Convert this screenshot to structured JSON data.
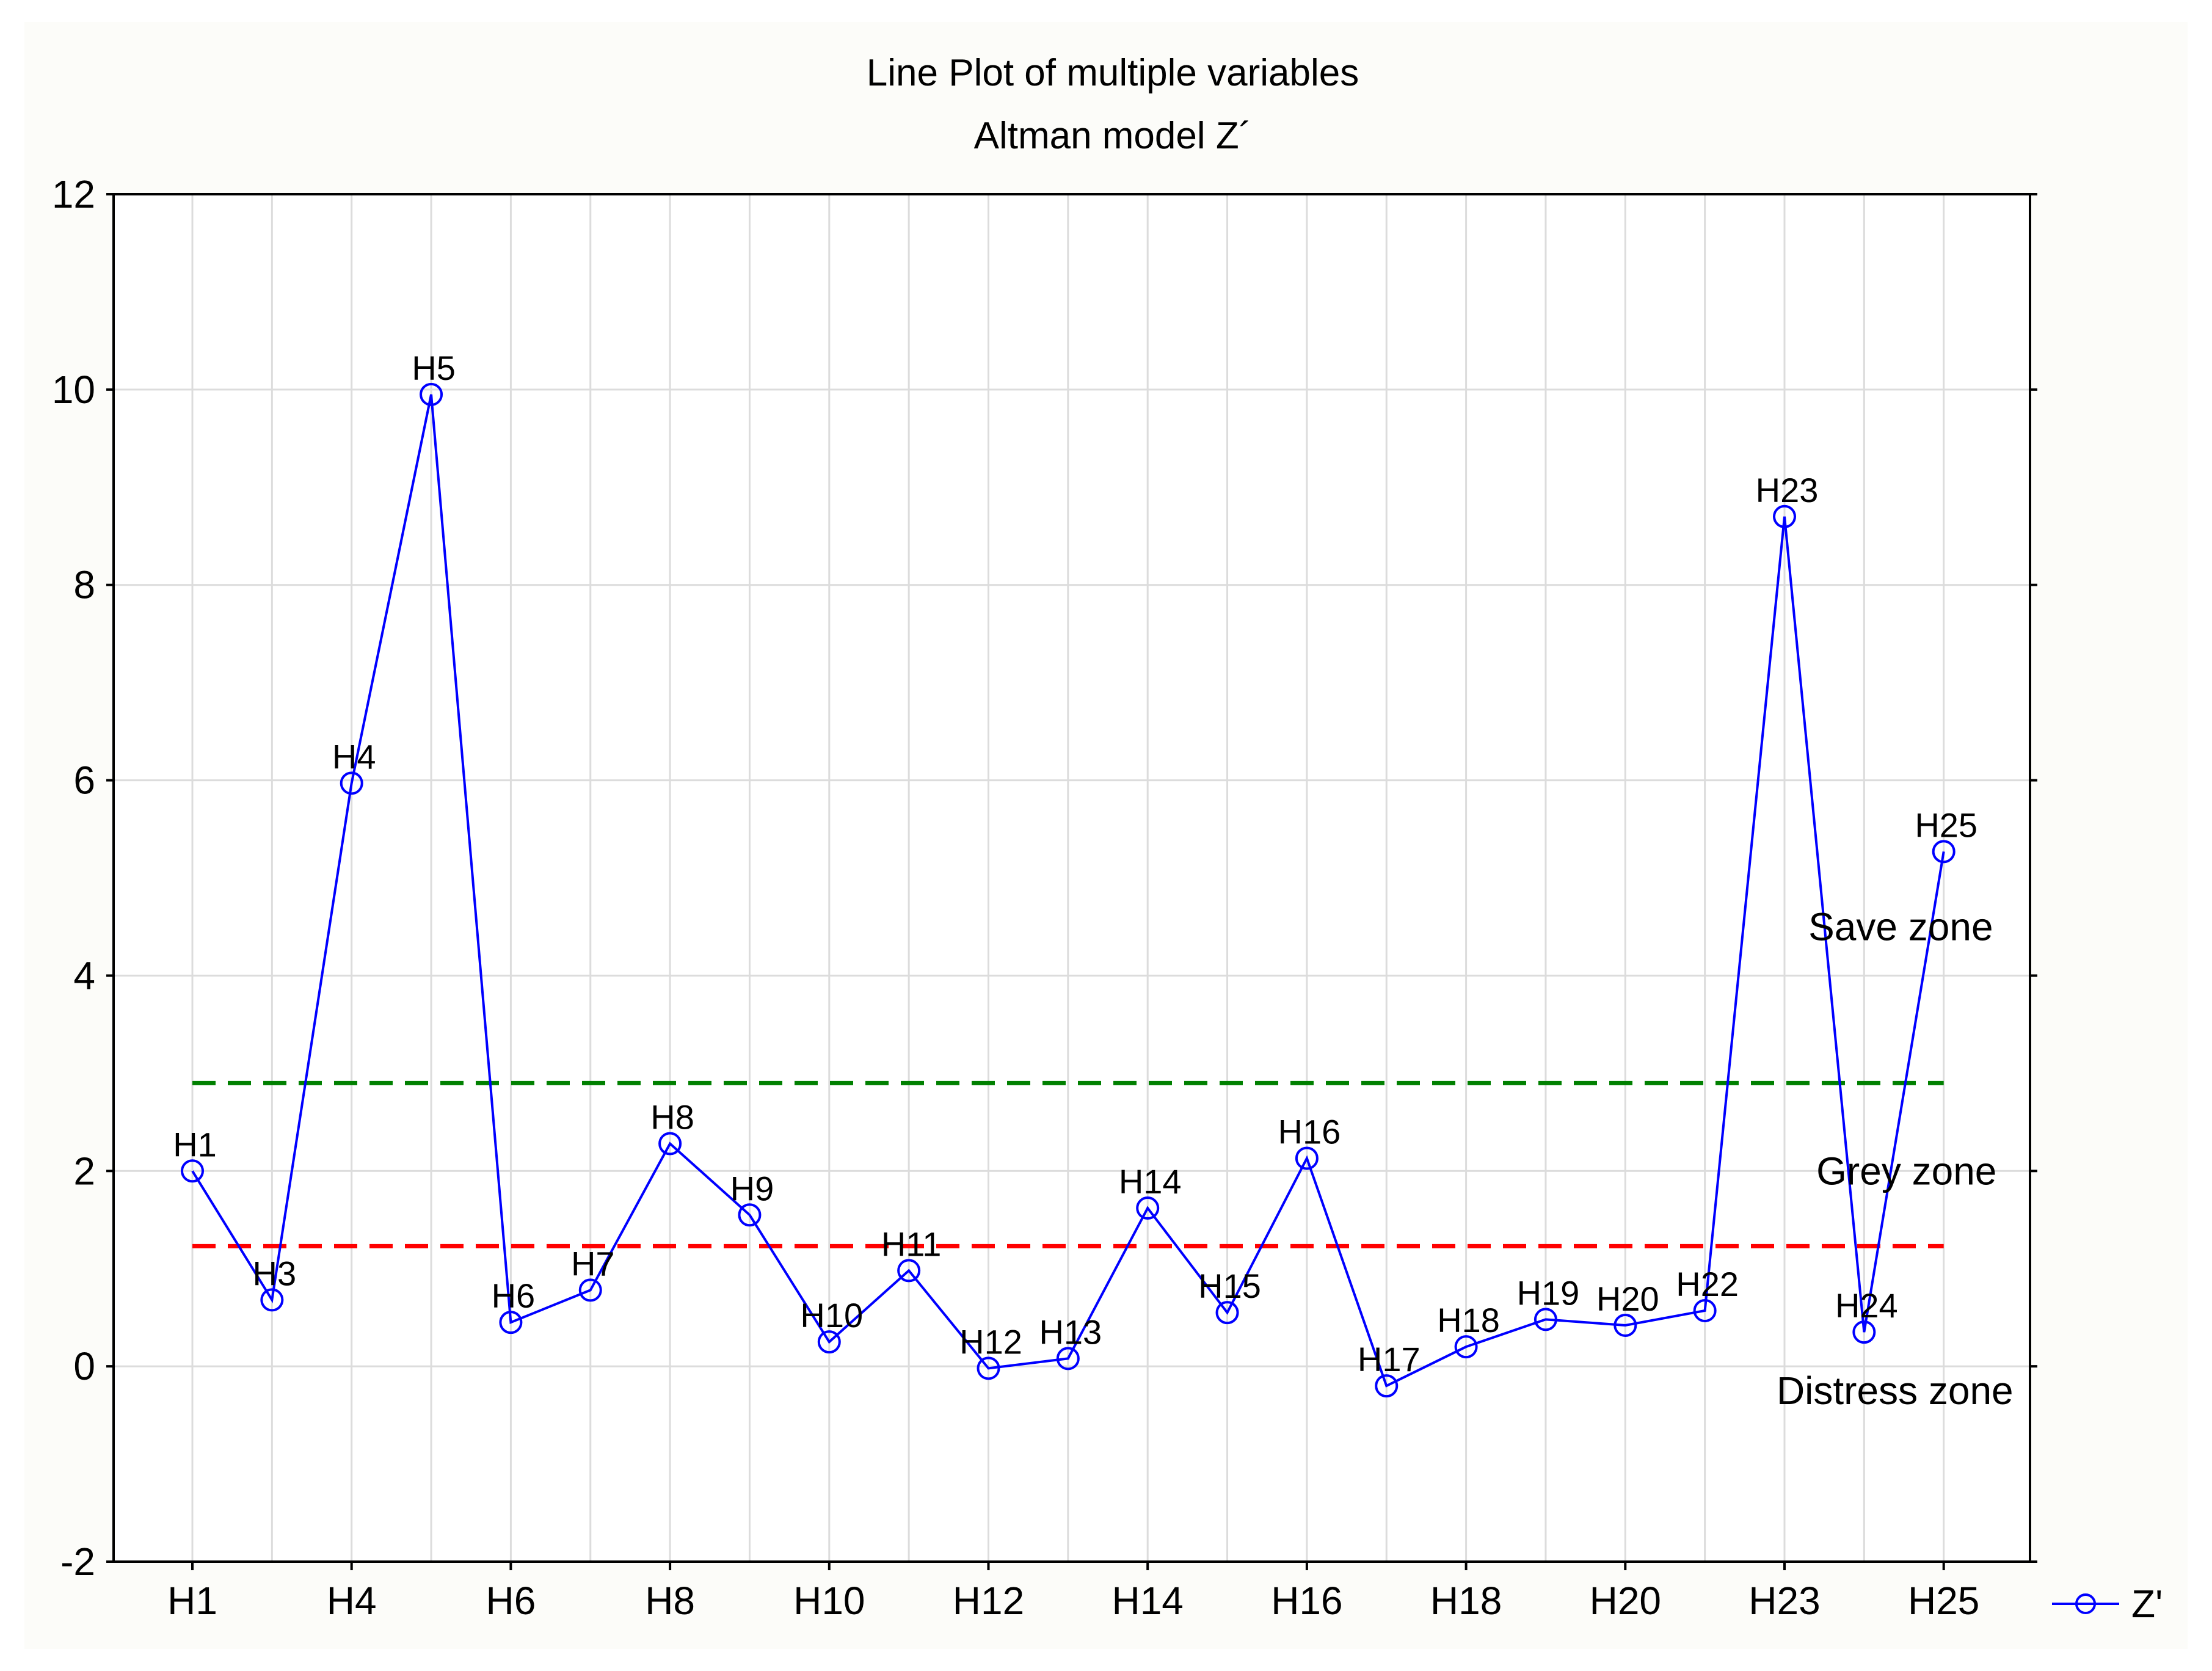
{
  "chart_data": {
    "type": "line",
    "title": "Line Plot of multiple variables",
    "subtitle": "Altman model Z´",
    "xlabel": "",
    "ylabel": "",
    "ylim": [
      -2,
      12
    ],
    "yticks": [
      -2,
      0,
      2,
      4,
      6,
      8,
      10,
      12
    ],
    "grid": true,
    "legend_position": "bottom-right",
    "categories": [
      "H1",
      "H3",
      "H4",
      "H5",
      "H6",
      "H7",
      "H8",
      "H9",
      "H10",
      "H11",
      "H12",
      "H13",
      "H14",
      "H15",
      "H16",
      "H17",
      "H18",
      "H19",
      "H20",
      "H22",
      "H23",
      "H24",
      "H25"
    ],
    "xtick_labels": [
      "H1",
      "H4",
      "H6",
      "H8",
      "H10",
      "H12",
      "H14",
      "H16",
      "H18",
      "H20",
      "H23",
      "H25"
    ],
    "xtick_indices": [
      0,
      2,
      4,
      6,
      8,
      10,
      12,
      14,
      16,
      18,
      20,
      22
    ],
    "series": [
      {
        "name": "Z'",
        "color": "#0000ff",
        "values": [
          2.0,
          0.68,
          5.97,
          9.95,
          0.45,
          0.78,
          2.28,
          1.55,
          0.25,
          0.98,
          -0.02,
          0.08,
          1.62,
          0.55,
          2.13,
          -0.2,
          0.2,
          0.48,
          0.42,
          0.57,
          8.7,
          0.35,
          5.27
        ]
      }
    ],
    "reference_lines": [
      {
        "name": "safe-threshold",
        "value": 2.9,
        "color": "#008000",
        "style": "dashed"
      },
      {
        "name": "distress-threshold",
        "value": 1.23,
        "color": "#ff0000",
        "style": "dashed"
      }
    ],
    "annotations": [
      {
        "text": "Save zone",
        "x_index": 20.3,
        "y": 4.5
      },
      {
        "text": "Grey zone",
        "x_index": 20.4,
        "y": 2.0
      },
      {
        "text": "Distress zone",
        "x_index": 19.9,
        "y": -0.25
      }
    ]
  }
}
